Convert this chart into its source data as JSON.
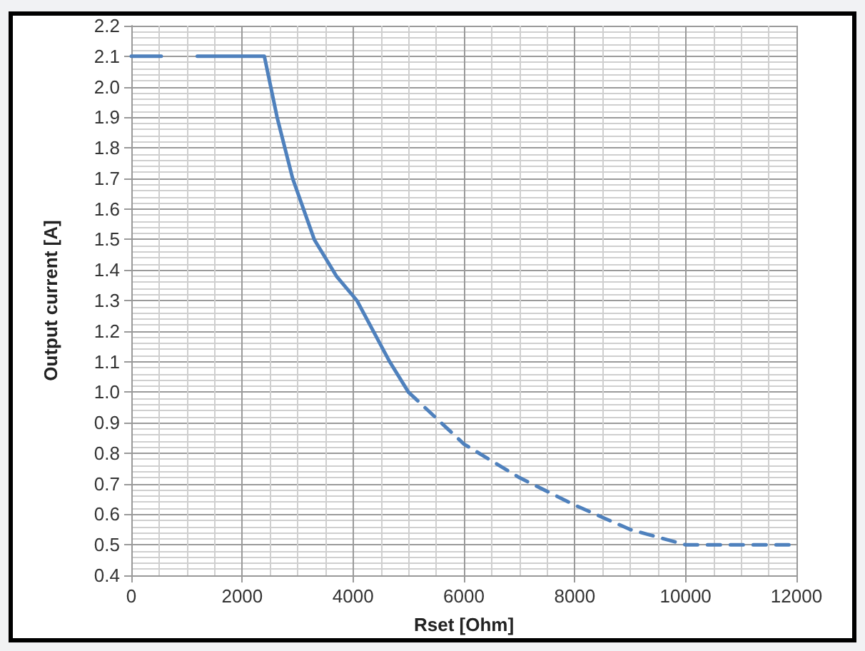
{
  "chart_data": {
    "type": "line",
    "xlabel": "Rset [Ohm]",
    "ylabel": "Output current [A]",
    "xlim": [
      0,
      12000
    ],
    "xticks": [
      0,
      2000,
      4000,
      6000,
      8000,
      10000,
      12000
    ],
    "ylim": [
      0.4,
      2.2
    ],
    "yticks": [
      {
        "value": 0.4,
        "label": "0.4"
      },
      {
        "value": 0.5,
        "label": "0.5"
      },
      {
        "value": 0.6,
        "label": "0.6"
      },
      {
        "value": 0.7,
        "label": "0.7"
      },
      {
        "value": 0.8,
        "label": "0.8"
      },
      {
        "value": 0.9,
        "label": "0.9"
      },
      {
        "value": 1.0,
        "label": "1.0"
      },
      {
        "value": 1.1,
        "label": "1.1"
      },
      {
        "value": 1.2,
        "label": "1.2"
      },
      {
        "value": 1.3,
        "label": "1.3"
      },
      {
        "value": 1.4,
        "label": "1.4"
      },
      {
        "value": 1.5,
        "label": "1.5"
      },
      {
        "value": 1.6,
        "label": "1.6"
      },
      {
        "value": 1.7,
        "label": "1.7"
      },
      {
        "value": 1.8,
        "label": "1.8"
      },
      {
        "value": 1.9,
        "label": "1.9"
      },
      {
        "value": 2.0,
        "label": "2.0"
      },
      {
        "value": 2.1,
        "label": "2.1"
      },
      {
        "value": 2.2,
        "label": "2.2"
      }
    ],
    "grid": true,
    "marker": "none",
    "series": [
      {
        "color": "#4f81bd",
        "line_style": "solid",
        "x": [
          0,
          540,
          850,
          1190,
          2400,
          2630,
          2910,
          3300,
          3700,
          4070,
          4660,
          5000
        ],
        "values": [
          2.1,
          2.1,
          null,
          2.1,
          2.1,
          1.9,
          1.7,
          1.5,
          1.38,
          1.3,
          1.1,
          1.0
        ]
      },
      {
        "color": "#4f81bd",
        "line_style": "dashed",
        "x": [
          5000,
          6000,
          7000,
          8000,
          9000,
          10000,
          11000,
          12000
        ],
        "values": [
          1.0,
          0.83,
          0.72,
          0.63,
          0.55,
          0.5,
          0.5,
          0.5
        ]
      }
    ]
  }
}
